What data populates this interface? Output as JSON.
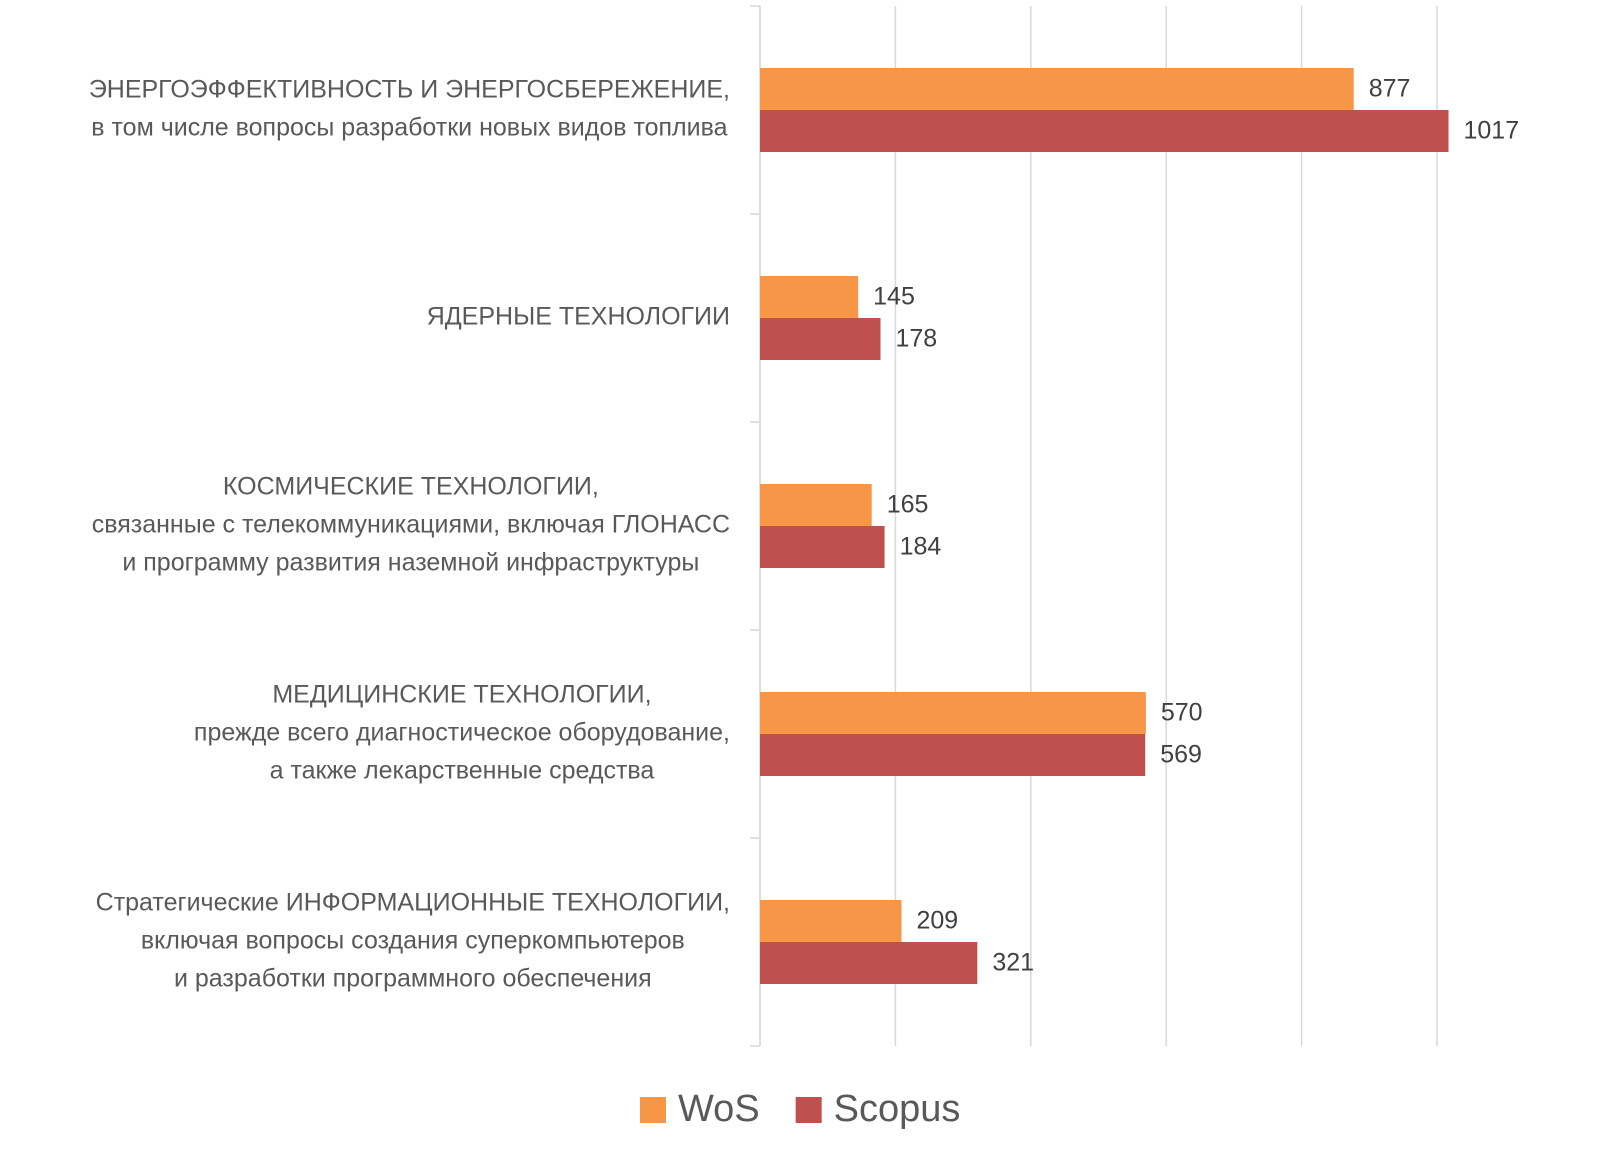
{
  "chart_data": {
    "type": "bar",
    "orientation": "horizontal",
    "categories": [
      [
        "ЭНЕРГОЭФФЕКТИВНОСТЬ И ЭНЕРГОСБЕРЕЖЕНИЕ,",
        "в том числе вопросы разработки новых видов топлива"
      ],
      [
        "ЯДЕРНЫЕ ТЕХНОЛОГИИ"
      ],
      [
        "КОСМИЧЕСКИЕ ТЕХНОЛОГИИ,",
        "связанные с телекоммуникациями, включая ГЛОНАСС",
        "и программу развития наземной инфраструктуры"
      ],
      [
        "МЕДИЦИНСКИЕ ТЕХНОЛОГИИ,",
        "прежде всего диагностическое оборудование,",
        "а также лекарственные средства"
      ],
      [
        "Стратегические ИНФОРМАЦИОННЫЕ ТЕХНОЛОГИИ,",
        "включая вопросы создания суперкомпьютеров",
        "и разработки программного обеспечения"
      ]
    ],
    "series": [
      {
        "name": "WoS",
        "color": "#f79646",
        "values": [
          877,
          145,
          165,
          570,
          209
        ]
      },
      {
        "name": "Scopus",
        "color": "#c0504d",
        "values": [
          1017,
          178,
          184,
          569,
          321
        ]
      }
    ],
    "xlim": [
      0,
      1000
    ],
    "xticks": [
      0,
      200,
      400,
      600,
      800,
      1000
    ],
    "grid": true,
    "legend": "bottom"
  }
}
